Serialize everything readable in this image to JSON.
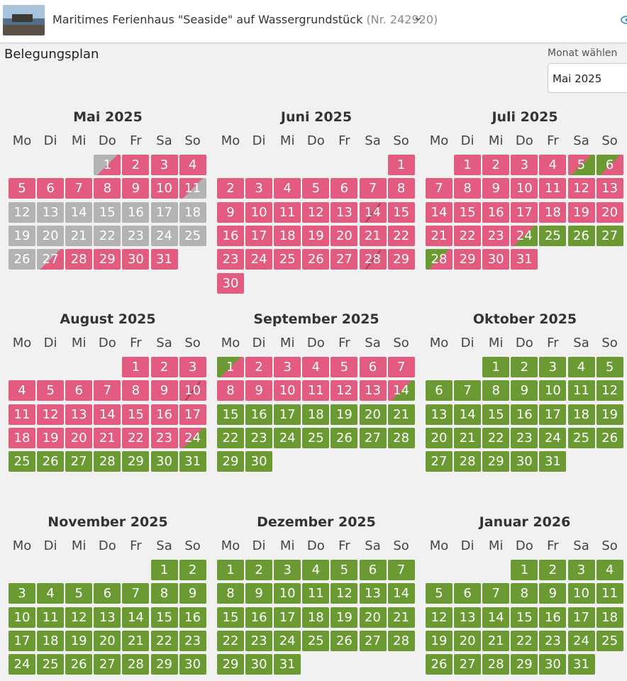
{
  "header": {
    "title": "Maritimes Ferienhaus \"Seaside\" auf Wassergrundstück",
    "number": "(Nr. 242920)"
  },
  "section_title": "Belegungsplan",
  "month_picker": {
    "label": "Monat wählen",
    "value": "Mai 2025"
  },
  "weekdays": [
    "Mo",
    "Di",
    "Mi",
    "Do",
    "Fr",
    "Sa",
    "So"
  ],
  "colors": {
    "booked": "#e35c7f",
    "free": "#6b9a32",
    "past": "#b3b3b3",
    "slash": "#6b2a3a"
  },
  "months": [
    {
      "title": "Mai 2025",
      "offset": 3,
      "days": 31,
      "past": [
        1,
        11,
        12,
        13,
        14,
        15,
        16,
        17,
        18,
        19,
        20,
        21,
        22,
        23,
        24,
        25,
        26,
        27
      ],
      "booked": [
        1,
        2,
        3,
        4,
        5,
        6,
        7,
        8,
        9,
        10,
        11,
        27,
        28,
        29,
        30,
        31
      ],
      "free": [],
      "split": {
        "1": "past-booked",
        "11": "booked-past",
        "27": "past-booked"
      },
      "slash": []
    },
    {
      "title": "Juni 2025",
      "offset": 6,
      "days": 30,
      "past": [],
      "booked": [
        1,
        2,
        3,
        4,
        5,
        6,
        7,
        8,
        9,
        10,
        11,
        12,
        13,
        14,
        15,
        16,
        17,
        18,
        19,
        20,
        21,
        22,
        23,
        24,
        25,
        26,
        27,
        28,
        29,
        30
      ],
      "free": [],
      "split": {},
      "slash": [
        14,
        28
      ]
    },
    {
      "title": "Juli 2025",
      "offset": 1,
      "days": 31,
      "past": [],
      "booked": [
        1,
        2,
        3,
        4,
        5,
        6,
        7,
        8,
        9,
        10,
        11,
        12,
        13,
        14,
        15,
        16,
        17,
        18,
        19,
        20,
        21,
        22,
        23,
        24,
        28,
        29,
        30,
        31
      ],
      "free": [
        25,
        26,
        27
      ],
      "split": {
        "5": "booked-free",
        "6": "free-booked",
        "24": "booked-free",
        "28": "free-booked"
      },
      "slash": []
    },
    {
      "title": "August 2025",
      "offset": 4,
      "days": 31,
      "past": [],
      "booked": [
        1,
        2,
        3,
        4,
        5,
        6,
        7,
        8,
        9,
        10,
        11,
        12,
        13,
        14,
        15,
        16,
        17,
        18,
        19,
        20,
        21,
        22,
        23,
        24
      ],
      "free": [
        25,
        26,
        27,
        28,
        29,
        30,
        31
      ],
      "split": {
        "24": "booked-free"
      },
      "slash": [
        10
      ]
    },
    {
      "title": "September 2025",
      "offset": 0,
      "days": 30,
      "past": [],
      "booked": [
        1,
        2,
        3,
        4,
        5,
        6,
        7,
        8,
        9,
        10,
        11,
        12,
        13,
        14
      ],
      "free": [
        15,
        16,
        17,
        18,
        19,
        20,
        21,
        22,
        23,
        24,
        25,
        26,
        27,
        28,
        29,
        30
      ],
      "split": {
        "1": "free-booked",
        "14": "booked-free"
      },
      "slash": []
    },
    {
      "title": "Oktober 2025",
      "offset": 2,
      "days": 31,
      "past": [],
      "booked": [],
      "free": [
        1,
        2,
        3,
        4,
        5,
        6,
        7,
        8,
        9,
        10,
        11,
        12,
        13,
        14,
        15,
        16,
        17,
        18,
        19,
        20,
        21,
        22,
        23,
        24,
        25,
        26,
        27,
        28,
        29,
        30,
        31
      ],
      "split": {},
      "slash": []
    },
    {
      "title": "November 2025",
      "offset": 5,
      "days": 30,
      "past": [],
      "booked": [],
      "free": [
        1,
        2,
        3,
        4,
        5,
        6,
        7,
        8,
        9,
        10,
        11,
        12,
        13,
        14,
        15,
        16,
        17,
        18,
        19,
        20,
        21,
        22,
        23,
        24,
        25,
        26,
        27,
        28,
        29,
        30
      ],
      "split": {},
      "slash": []
    },
    {
      "title": "Dezember 2025",
      "offset": 0,
      "days": 31,
      "past": [],
      "booked": [],
      "free": [
        1,
        2,
        3,
        4,
        5,
        6,
        7,
        8,
        9,
        10,
        11,
        12,
        13,
        14,
        15,
        16,
        17,
        18,
        19,
        20,
        21,
        22,
        23,
        24,
        25,
        26,
        27,
        28,
        29,
        30,
        31
      ],
      "split": {},
      "slash": []
    },
    {
      "title": "Januar 2026",
      "offset": 3,
      "days": 31,
      "past": [],
      "booked": [],
      "free": [
        1,
        2,
        3,
        4,
        5,
        6,
        7,
        8,
        9,
        10,
        11,
        12,
        13,
        14,
        15,
        16,
        17,
        18,
        19,
        20,
        21,
        22,
        23,
        24,
        25,
        26,
        27,
        28,
        29,
        30,
        31
      ],
      "split": {},
      "slash": []
    }
  ]
}
